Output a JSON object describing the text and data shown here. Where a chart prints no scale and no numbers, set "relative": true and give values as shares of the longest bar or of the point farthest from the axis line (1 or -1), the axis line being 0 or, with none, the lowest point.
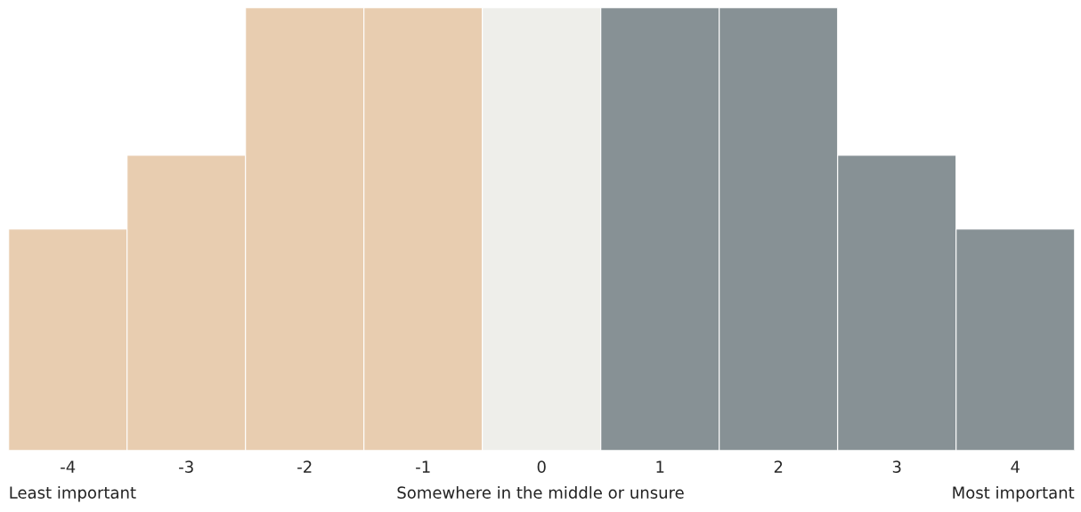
{
  "chart_data": {
    "type": "bar",
    "relative": true,
    "categories": [
      "-4",
      "-3",
      "-2",
      "-1",
      "0",
      "1",
      "2",
      "3",
      "4"
    ],
    "values": [
      0.5,
      0.6667,
      1,
      1,
      1,
      1,
      1,
      0.6667,
      0.5
    ],
    "colors": [
      "#e8cdb0",
      "#e8cdb0",
      "#e8cdb0",
      "#e8cdb0",
      "#eeeeea",
      "#879195",
      "#879195",
      "#879195",
      "#879195"
    ],
    "annotations": [
      "Least important",
      "Somewhere in the middle or unsure",
      "Most important"
    ],
    "grid": false,
    "legend": false
  }
}
